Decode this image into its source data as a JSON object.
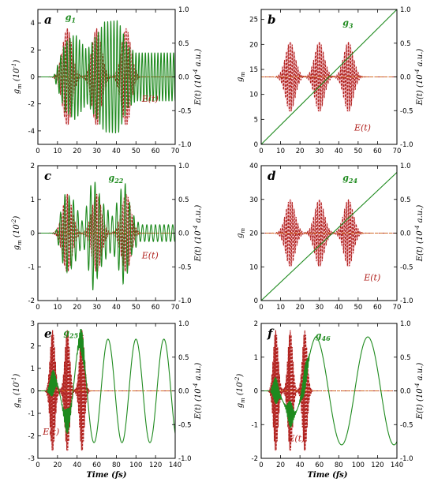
{
  "colors": {
    "g_line": "#1e8a1e",
    "e_line": "#b0201c",
    "e_shade": "#f4b6c2",
    "e_mid": "#d2691e"
  },
  "x_axis_title": "Time (fs)",
  "chart_data": [
    {
      "type": "line",
      "panel": "a",
      "g_label": "g",
      "g_sub": "1",
      "e_label": "E(t)",
      "ylabel_left": "g_m (10^-1)",
      "ylabel_right": "E(t) (10^-4 a.u.)",
      "xlim": [
        0,
        70
      ],
      "xticks": [
        0,
        10,
        20,
        30,
        40,
        50,
        60,
        70
      ],
      "ylim_left": [
        -5,
        5
      ],
      "yticks_left": [
        -4,
        -2,
        0,
        2,
        4
      ],
      "ylim_right": [
        -1.0,
        1.0
      ],
      "yticks_right": [
        "-1.0",
        "-0.5",
        "0.0",
        "0.5",
        "1.0"
      ],
      "g_series": {
        "kind": "oscillation",
        "envelopes": [
          {
            "t": 0,
            "a": 0
          },
          {
            "t": 8,
            "a": 0
          },
          {
            "t": 14,
            "a": 2.6
          },
          {
            "t": 19,
            "a": 3.2
          },
          {
            "t": 25,
            "a": 2.0
          },
          {
            "t": 29,
            "a": 2.9
          },
          {
            "t": 34,
            "a": 4.1
          },
          {
            "t": 41,
            "a": 4.2
          },
          {
            "t": 46,
            "a": 2.3
          },
          {
            "t": 50,
            "a": 1.8
          },
          {
            "t": 70,
            "a": 1.8
          }
        ],
        "offset": 0,
        "period": 1.6
      },
      "e_pulses": {
        "centers": [
          15,
          30,
          45
        ],
        "width": 3.5,
        "amp": 0.72,
        "period": 1.0
      },
      "label_pos": {
        "g_label": [
          14,
          4.2
        ],
        "e_label": [
          53,
          -1.85
        ]
      }
    },
    {
      "type": "line",
      "panel": "b",
      "g_label": "g",
      "g_sub": "3",
      "e_label": "E(t)",
      "ylabel_left": "g_m",
      "ylabel_right": "E(t) (10^-4 a.u.)",
      "xlim": [
        0,
        70
      ],
      "xticks": [
        0,
        10,
        20,
        30,
        40,
        50,
        60,
        70
      ],
      "ylim_left": [
        0,
        27
      ],
      "yticks_left": [
        0,
        5,
        10,
        15,
        20,
        25
      ],
      "ylim_right": [
        -1.0,
        1.0
      ],
      "yticks_right": [
        "-1.0",
        "-0.5",
        "0.0",
        "0.5",
        "1.0"
      ],
      "g_series": {
        "kind": "linear",
        "points": [
          [
            0,
            0
          ],
          [
            70,
            27
          ]
        ]
      },
      "e_pulses": {
        "centers": [
          15,
          30,
          45
        ],
        "width": 3.5,
        "amp": 0.52,
        "period": 1.0
      },
      "label_pos": {
        "g_label": [
          42,
          23.8
        ],
        "e_label": [
          48,
          2.8
        ]
      }
    },
    {
      "type": "line",
      "panel": "c",
      "g_label": "g",
      "g_sub": "22",
      "e_label": "E(t)",
      "ylabel_left": "g_m (10^-2)",
      "ylabel_right": "E(t) (10^-4 a.u.)",
      "xlim": [
        0,
        70
      ],
      "xticks": [
        0,
        10,
        20,
        30,
        40,
        50,
        60,
        70
      ],
      "ylim_left": [
        -2,
        2
      ],
      "yticks_left": [
        -2,
        -1,
        0,
        1,
        2
      ],
      "ylim_right": [
        -1.0,
        1.0
      ],
      "yticks_right": [
        "-1.0",
        "-0.5",
        "0.0",
        "0.5",
        "1.0"
      ],
      "g_series": {
        "kind": "oscillation",
        "envelopes": [
          {
            "t": 0,
            "a": 0
          },
          {
            "t": 9,
            "a": 0
          },
          {
            "t": 14,
            "a": 1.2
          },
          {
            "t": 18,
            "a": 1.0
          },
          {
            "t": 23,
            "a": 0.3
          },
          {
            "t": 28,
            "a": 1.7
          },
          {
            "t": 33,
            "a": 0.9
          },
          {
            "t": 38,
            "a": 0.5
          },
          {
            "t": 44,
            "a": 1.6
          },
          {
            "t": 48,
            "a": 0.6
          },
          {
            "t": 52,
            "a": 0.25
          },
          {
            "t": 70,
            "a": 0.25
          }
        ],
        "offset": 0,
        "period": 2.2
      },
      "e_pulses": {
        "centers": [
          15,
          30,
          45
        ],
        "width": 3.5,
        "amp": 0.58,
        "period": 1.0
      },
      "label_pos": {
        "g_label": [
          36,
          1.55
        ],
        "e_label": [
          53,
          -0.75
        ]
      }
    },
    {
      "type": "line",
      "panel": "d",
      "g_label": "g",
      "g_sub": "24",
      "e_label": "E(t)",
      "ylabel_left": "g_m",
      "ylabel_right": "E(t) (10^-4 a.u.)",
      "xlim": [
        0,
        70
      ],
      "xticks": [
        0,
        10,
        20,
        30,
        40,
        50,
        60,
        70
      ],
      "ylim_left": [
        0,
        40
      ],
      "yticks_left": [
        0,
        10,
        20,
        30,
        40
      ],
      "ylim_right": [
        -1.0,
        1.0
      ],
      "yticks_right": [
        "-1.0",
        "-0.5",
        "0.0",
        "0.5",
        "1.0"
      ],
      "g_series": {
        "kind": "linear",
        "points": [
          [
            0,
            0
          ],
          [
            70,
            38
          ]
        ]
      },
      "e_pulses": {
        "centers": [
          15,
          30,
          45
        ],
        "width": 3.5,
        "amp": 0.5,
        "period": 1.0
      },
      "label_pos": {
        "g_label": [
          42,
          35.5
        ],
        "e_label": [
          53,
          6
        ]
      }
    },
    {
      "type": "line",
      "panel": "e",
      "g_label": "g",
      "g_sub": "25",
      "e_label": "E(t)",
      "ylabel_left": "g_m (10^-1)",
      "ylabel_right": "E(t) (10^-4 a.u.)",
      "xlim": [
        0,
        140
      ],
      "xticks": [
        0,
        20,
        40,
        60,
        80,
        100,
        120,
        140
      ],
      "ylim_left": [
        -3,
        3
      ],
      "yticks_left": [
        -3,
        -2,
        -1,
        0,
        1,
        2,
        3
      ],
      "ylim_right": [
        -1.0,
        1.0
      ],
      "yticks_right": [
        "-1.0",
        "-0.5",
        "0.0",
        "0.5",
        "1.0"
      ],
      "g_series": {
        "kind": "slow_wave",
        "start": 10,
        "period": 28.5,
        "phase": 43,
        "amp": 2.3,
        "noise_until": 48
      },
      "e_pulses": {
        "centers": [
          15,
          30,
          45
        ],
        "width": 3.5,
        "amp": 0.9,
        "period": 1.0
      },
      "label_pos": {
        "g_label": [
          26,
          2.45
        ],
        "e_label": [
          5,
          -1.95
        ]
      }
    },
    {
      "type": "line",
      "panel": "f",
      "g_label": "g",
      "g_sub": "46",
      "e_label": "E(t)",
      "ylabel_left": "g_m (10^-2)",
      "ylabel_right": "E(t) (10^-4 a.u.)",
      "xlim": [
        0,
        140
      ],
      "xticks": [
        0,
        20,
        40,
        60,
        80,
        100,
        120,
        140
      ],
      "ylim_left": [
        -2,
        2
      ],
      "yticks_left": [
        -2,
        -1,
        0,
        1,
        2
      ],
      "ylim_right": [
        -1.0,
        1.0
      ],
      "yticks_right": [
        "-1.0",
        "-0.5",
        "0.0",
        "0.5",
        "1.0"
      ],
      "g_series": {
        "kind": "slow_wave",
        "start": 10,
        "period": 54,
        "phase": 56,
        "amp": 1.6,
        "noise_until": 50
      },
      "e_pulses": {
        "centers": [
          15,
          30,
          45
        ],
        "width": 3.5,
        "amp": 0.9,
        "period": 1.0
      },
      "label_pos": {
        "g_label": [
          56,
          1.55
        ],
        "e_label": [
          28,
          -1.5
        ]
      }
    }
  ]
}
